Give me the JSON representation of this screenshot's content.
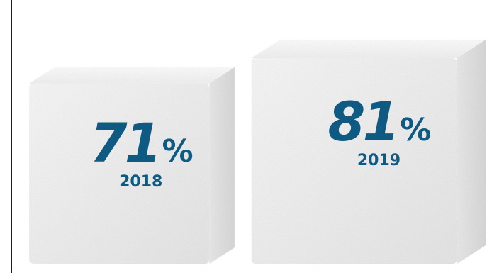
{
  "chart_data": {
    "type": "bar",
    "categories": [
      "2018",
      "2019"
    ],
    "values": [
      71,
      81
    ],
    "value_suffix": "%",
    "accent_color": "#0f5a82",
    "cube_color": "#f3f3f3"
  },
  "labels": [
    {
      "number": "71",
      "sign": "%",
      "year": "2018"
    },
    {
      "number": "81",
      "sign": "%",
      "year": "2019"
    }
  ]
}
